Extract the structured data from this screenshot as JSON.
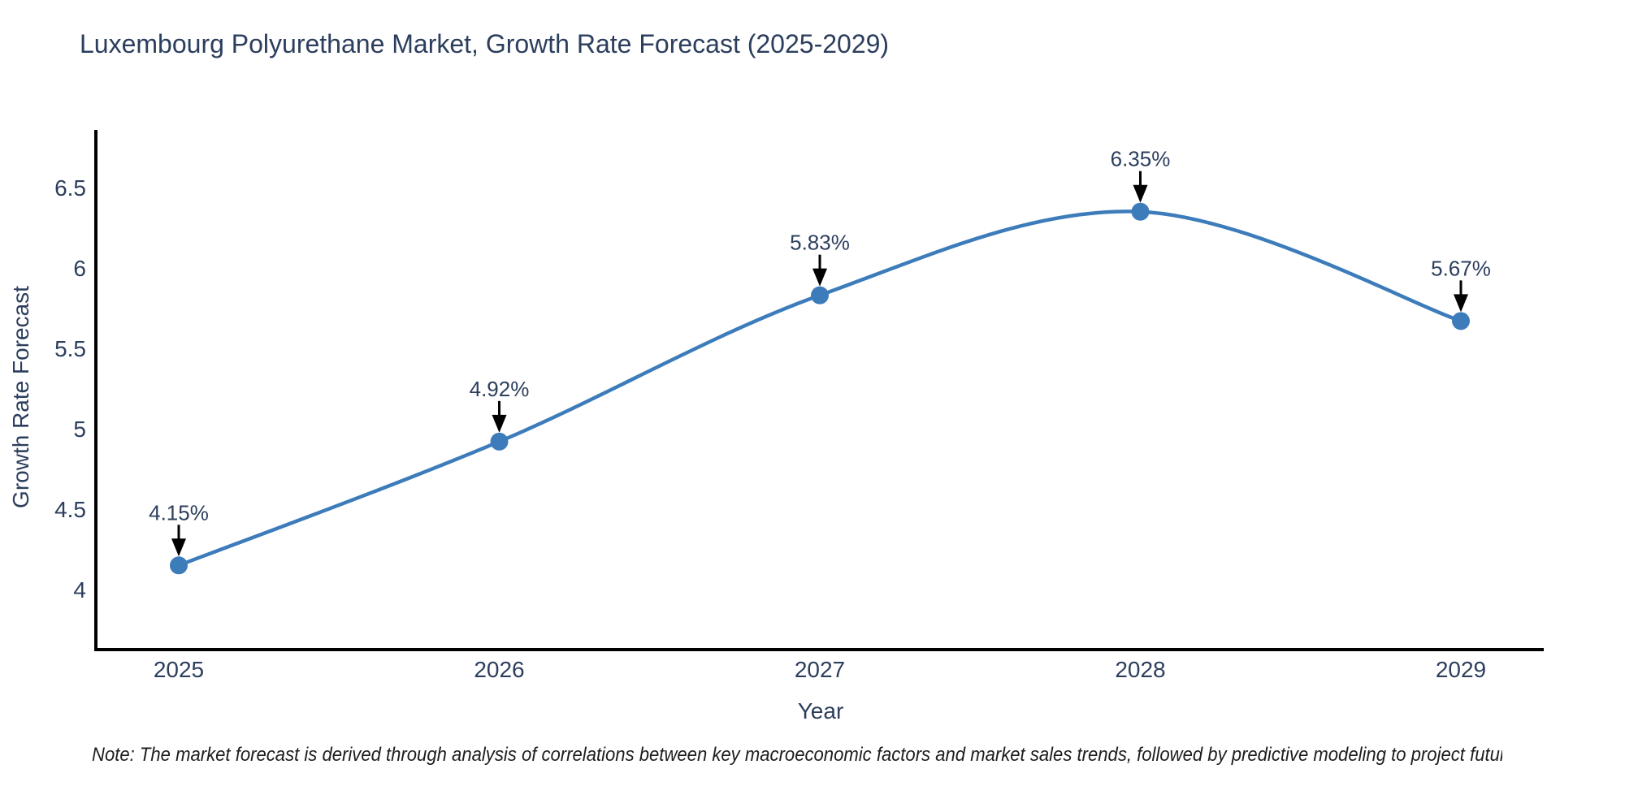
{
  "title": "Luxembourg Polyurethane Market, Growth Rate Forecast (2025-2029)",
  "note": "Note: The market forecast is derived through analysis of correlations between key macroeconomic factors and market sales trends, followed by predictive modeling to project future sales",
  "chart_data": {
    "type": "line",
    "title": "Luxembourg Polyurethane Market, Growth Rate Forecast (2025-2029)",
    "xlabel": "Year",
    "ylabel": "Growth Rate Forecast",
    "categories": [
      "2025",
      "2026",
      "2027",
      "2028",
      "2029"
    ],
    "values": [
      4.15,
      4.92,
      5.83,
      6.35,
      5.67
    ],
    "point_labels": [
      "4.15%",
      "4.92%",
      "5.83%",
      "6.35%",
      "5.67%"
    ],
    "yticks": [
      4,
      4.5,
      5,
      5.5,
      6,
      6.5
    ],
    "ytick_labels": [
      "4",
      "4.5",
      "5",
      "5.5",
      "6",
      "6.5"
    ],
    "ylim": [
      3.63,
      6.86
    ],
    "line_shape": "spline",
    "grid": false,
    "legend": "none",
    "line_color": "#3d7cba",
    "marker_color": "#3d7cba",
    "axis_color": "#000000",
    "arrow_color": "#000000",
    "text_color": "#2c3e5d"
  }
}
